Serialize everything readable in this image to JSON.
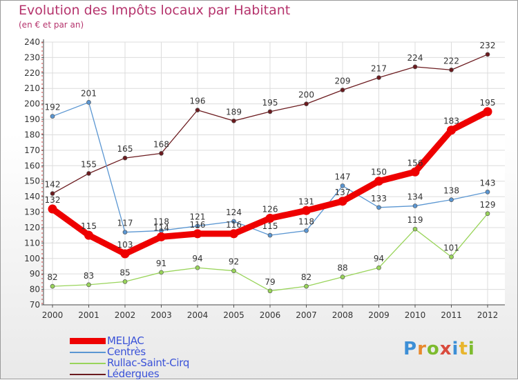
{
  "title": "Evolution des Impôts locaux par Habitant",
  "subtitle": "(en € et par an)",
  "logo": [
    "P",
    "r",
    "o",
    "x",
    "i",
    "t",
    "i"
  ],
  "chart_data": {
    "type": "line",
    "x": [
      "2000",
      "2001",
      "2002",
      "2003",
      "2004",
      "2005",
      "2006",
      "2007",
      "2008",
      "2009",
      "2010",
      "2011",
      "2012"
    ],
    "ylim": [
      70,
      240
    ],
    "yticks": [
      70,
      80,
      90,
      100,
      110,
      120,
      130,
      140,
      150,
      160,
      170,
      180,
      190,
      200,
      210,
      220,
      230,
      240
    ],
    "grid": true,
    "legend_position": "bottom-left",
    "series": [
      {
        "name": "Lédergues",
        "color": "#6b1a1e",
        "values": [
          142,
          155,
          165,
          168,
          196,
          189,
          195,
          200,
          209,
          217,
          224,
          222,
          232
        ]
      },
      {
        "name": "Rullac-Saint-Cirq",
        "color": "#99d45a",
        "values": [
          82,
          83,
          85,
          91,
          94,
          92,
          79,
          82,
          88,
          94,
          119,
          101,
          129
        ]
      },
      {
        "name": "Centrès",
        "color": "#5a96d2",
        "values": [
          192,
          201,
          117,
          118,
          121,
          124,
          115,
          118,
          147,
          133,
          134,
          138,
          143
        ]
      },
      {
        "name": "MELJAC",
        "color": "#ee0000",
        "values": [
          132,
          115,
          103,
          114,
          116,
          116,
          126,
          131,
          137,
          150,
          156,
          183,
          195
        ]
      }
    ]
  }
}
